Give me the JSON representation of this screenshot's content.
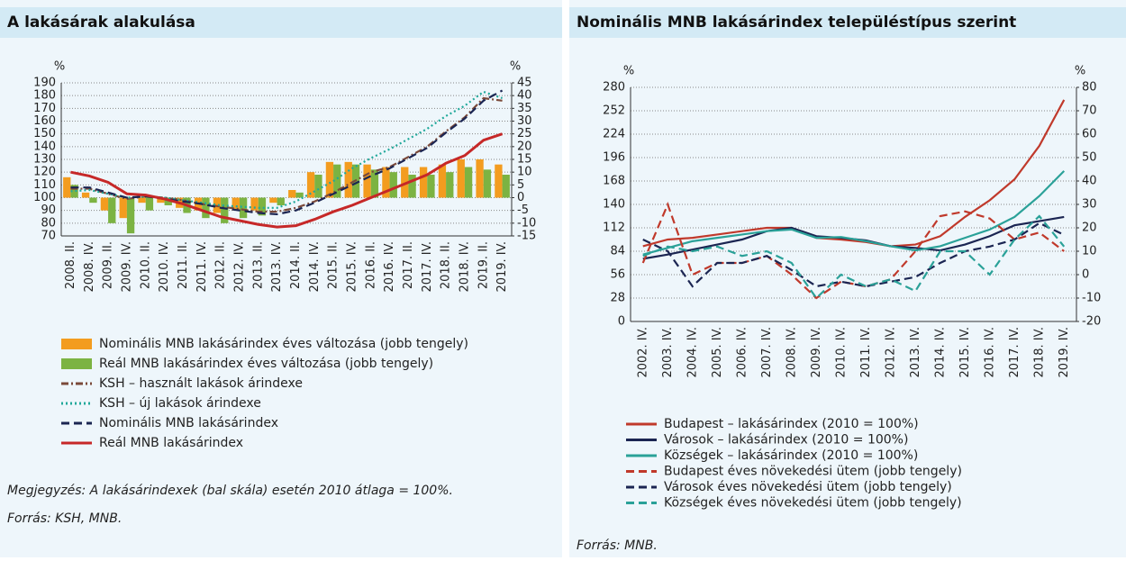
{
  "chart_data": [
    {
      "type": "combo",
      "title": "A lakásárak alakulása",
      "y_label": "%",
      "y2_label": "%",
      "categories": [
        "2008. II.",
        "2008. IV.",
        "2009. II.",
        "2009. IV.",
        "2010. II.",
        "2010. IV.",
        "2011. II.",
        "2011. IV.",
        "2012. II.",
        "2012. IV.",
        "2013. II.",
        "2013. IV.",
        "2014. II.",
        "2014. IV.",
        "2015. II.",
        "2015. IV.",
        "2016. II.",
        "2016. IV.",
        "2017. II.",
        "2017. IV.",
        "2018. II.",
        "2018. IV.",
        "2019. II.",
        "2019. IV."
      ],
      "ylim": [
        70,
        190
      ],
      "yticks": [
        70,
        80,
        90,
        100,
        110,
        120,
        130,
        140,
        150,
        160,
        170,
        180,
        190
      ],
      "y2lim": [
        -15,
        45
      ],
      "y2ticks": [
        -15,
        -10,
        -5,
        0,
        5,
        10,
        15,
        20,
        25,
        30,
        35,
        40,
        45
      ],
      "grid": true,
      "legend": "bottom",
      "series": [
        {
          "name": "Nominális MNB lakásárindex éves változása (jobb tengely)",
          "type": "bar",
          "axis": "y2",
          "color": "#f39c1f",
          "values": [
            8,
            2,
            -5,
            -8,
            -2,
            -2,
            -4,
            -5,
            -6,
            -5,
            -5,
            -2,
            3,
            10,
            14,
            14,
            13,
            12,
            12,
            12,
            13,
            15,
            15,
            13
          ]
        },
        {
          "name": "Reál MNB lakásárindex éves változása (jobb tengely)",
          "type": "bar",
          "axis": "y2",
          "color": "#7cb342",
          "values": [
            5,
            -2,
            -10,
            -14,
            -5,
            -3,
            -6,
            -8,
            -10,
            -8,
            -7,
            -3,
            2,
            9,
            13,
            13,
            11,
            10,
            9,
            9,
            10,
            12,
            11,
            9
          ]
        },
        {
          "name": "KSH – használt lakások árindexe",
          "type": "line",
          "style": "dashdot",
          "color": "#7b4a3a",
          "values": [
            107,
            107,
            103,
            99,
            101,
            100,
            98,
            95,
            93,
            91,
            89,
            89,
            92,
            97,
            104,
            112,
            120,
            124,
            132,
            140,
            152,
            163,
            178,
            176
          ]
        },
        {
          "name": "KSH – új lakások árindexe",
          "type": "line",
          "style": "dotted",
          "color": "#20a89a",
          "values": [
            105,
            106,
            103,
            100,
            101,
            100,
            98,
            96,
            94,
            93,
            92,
            92,
            97,
            105,
            113,
            123,
            131,
            138,
            146,
            154,
            164,
            172,
            183,
            178
          ]
        },
        {
          "name": "Nominális MNB lakásárindex",
          "type": "line",
          "style": "dashed",
          "color": "#1b2552",
          "values": [
            108,
            108,
            104,
            100,
            101,
            99,
            97,
            95,
            92,
            90,
            88,
            87,
            90,
            96,
            103,
            110,
            117,
            123,
            131,
            139,
            151,
            162,
            176,
            184
          ]
        },
        {
          "name": "Reál MNB lakásárindex",
          "type": "line",
          "style": "solid",
          "color": "#c62828",
          "values": [
            120,
            117,
            112,
            103,
            102,
            99,
            95,
            90,
            85,
            82,
            79,
            77,
            78,
            83,
            89,
            94,
            100,
            106,
            112,
            118,
            127,
            133,
            145,
            150
          ]
        }
      ],
      "note": "Megjegyzés: A lakásárindexek (bal skála) esetén 2010 átlaga = 100%.",
      "source": "Forrás: KSH, MNB."
    },
    {
      "type": "line",
      "title": "Nominális MNB lakásárindex településtípus szerint",
      "y_label": "%",
      "y2_label": "%",
      "categories": [
        "2002. IV.",
        "2003. IV.",
        "2004. IV.",
        "2005. IV.",
        "2006. IV.",
        "2007. IV.",
        "2008. IV.",
        "2009. IV.",
        "2010. IV.",
        "2011. IV.",
        "2012. IV.",
        "2013. IV.",
        "2014. IV.",
        "2015. IV.",
        "2016. IV.",
        "2017. IV.",
        "2018. IV.",
        "2019. IV."
      ],
      "ylim": [
        0,
        280
      ],
      "yticks": [
        0,
        28,
        56,
        84,
        112,
        140,
        168,
        196,
        224,
        252,
        280
      ],
      "y2lim": [
        -20,
        80
      ],
      "y2ticks": [
        -20,
        -10,
        0,
        10,
        20,
        30,
        40,
        50,
        60,
        70,
        80
      ],
      "grid": true,
      "legend": "bottom",
      "series": [
        {
          "name": "Budapest – lakásárindex (2010 = 100%)",
          "type": "line",
          "style": "solid",
          "color": "#c0392b",
          "values": [
            90,
            98,
            100,
            104,
            108,
            112,
            112,
            100,
            98,
            95,
            90,
            92,
            102,
            125,
            145,
            170,
            210,
            265
          ]
        },
        {
          "name": "Városok – lakásárindex (2010 = 100%)",
          "type": "line",
          "style": "solid",
          "color": "#1b2552",
          "values": [
            75,
            80,
            86,
            92,
            98,
            108,
            112,
            102,
            100,
            97,
            90,
            88,
            85,
            92,
            102,
            115,
            120,
            125
          ]
        },
        {
          "name": "Községek – lakásárindex (2010 = 100%)",
          "type": "line",
          "style": "solid",
          "color": "#2aa198",
          "values": [
            80,
            88,
            96,
            100,
            104,
            108,
            110,
            100,
            101,
            96,
            90,
            85,
            90,
            100,
            110,
            125,
            150,
            180
          ]
        },
        {
          "name": "Budapest éves növekedési ütem (jobb tengely)",
          "type": "line",
          "style": "dashed",
          "axis": "y2",
          "color": "#c0392b",
          "values": [
            5,
            30,
            0,
            5,
            5,
            8,
            0,
            -10,
            -3,
            -5,
            -2,
            10,
            25,
            27,
            24,
            15,
            18,
            10
          ]
        },
        {
          "name": "Városok éves növekedési ütem (jobb tengely)",
          "type": "line",
          "style": "dashed",
          "axis": "y2",
          "color": "#1b2552",
          "values": [
            15,
            10,
            -5,
            5,
            5,
            8,
            2,
            -5,
            -3,
            -5,
            -3,
            -1,
            5,
            10,
            12,
            15,
            22,
            17
          ]
        },
        {
          "name": "Községek éves növekedési ütem (jobb tengely)",
          "type": "line",
          "style": "dashed",
          "axis": "y2",
          "color": "#2aa198",
          "values": [
            8,
            12,
            10,
            12,
            8,
            10,
            5,
            -10,
            0,
            -5,
            -2,
            -7,
            10,
            10,
            0,
            15,
            25,
            12
          ]
        }
      ],
      "source": "Forrás: MNB."
    }
  ]
}
